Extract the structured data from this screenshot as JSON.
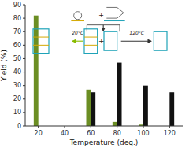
{
  "chart_data": {
    "type": "bar",
    "x": [
      20,
      40,
      60,
      80,
      100,
      120
    ],
    "series": [
      {
        "color": "#6b8e23",
        "values": [
          82,
          0,
          27,
          3,
          1,
          0
        ]
      },
      {
        "color": "#111111",
        "values": [
          0,
          0,
          25,
          47,
          30,
          25
        ]
      }
    ],
    "xlabel": "Temperature (deg.)",
    "ylabel": "Yield (%)",
    "xlim": [
      10,
      130
    ],
    "xticks": [
      20,
      40,
      60,
      80,
      100,
      120
    ],
    "ylim": [
      0,
      90
    ],
    "yticks": [
      0,
      10,
      20,
      30,
      40,
      50,
      60,
      70,
      80,
      90
    ],
    "annotations": [
      "+",
      "20°C",
      "120°C",
      "+"
    ],
    "grid": false
  }
}
